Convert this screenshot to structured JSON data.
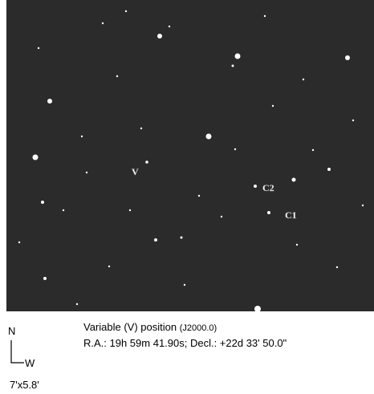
{
  "image": {
    "labels": {
      "variable": "V",
      "comp2": "C2",
      "comp1": "C1"
    }
  },
  "compass": {
    "north": "N",
    "west": "W"
  },
  "field_size": "7'x5.8'",
  "caption": {
    "line1": "Variable (V) position",
    "epoch": "(J2000.0)",
    "line2": "R.A.: 19h 59m 41.90s; Decl.: +22d 33' 50.0\""
  }
}
